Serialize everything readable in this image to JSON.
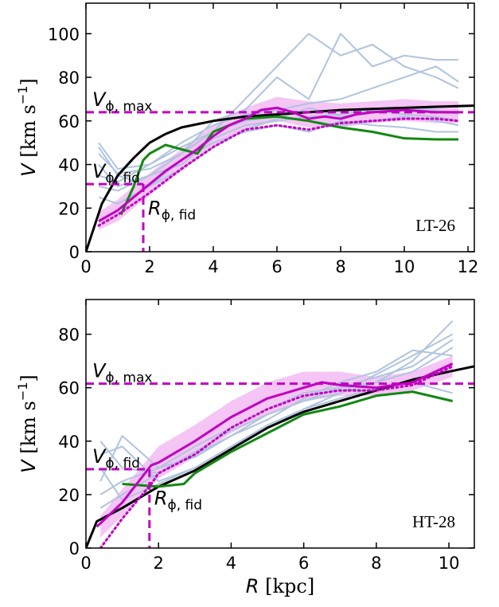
{
  "chart_data": [
    {
      "type": "line",
      "ylabel": [
        "V",
        " [km s",
        "−1",
        "]"
      ],
      "panel_label": "LT-26",
      "panel_label_color": "#0000ee",
      "xlim": [
        0,
        12.2
      ],
      "ylim": [
        0,
        114
      ],
      "xticks": [
        0,
        2,
        4,
        6,
        8,
        10,
        12
      ],
      "yticks": [
        0,
        20,
        40,
        60,
        80,
        100
      ],
      "v_max": 64,
      "v_fid": 31,
      "r_fid": 1.8,
      "ref_color": "#c000c0",
      "v_max_label": [
        "V",
        "ϕ, max"
      ],
      "v_fid_label": [
        "V",
        "ϕ, fid"
      ],
      "r_fid_label": [
        "R",
        "ϕ, fid"
      ],
      "band": {
        "color": "#f2b6f2",
        "x": [
          0.4,
          1,
          2,
          3,
          4,
          5,
          6,
          7,
          8,
          9,
          10,
          11,
          11.7
        ],
        "lower": [
          10,
          14,
          26,
          37,
          48,
          56,
          60,
          57,
          57,
          59,
          60,
          59,
          59
        ],
        "upper": [
          18,
          24,
          36,
          47,
          58,
          66,
          71,
          69,
          68,
          69,
          70,
          69,
          69
        ]
      },
      "series": [
        {
          "color": "#b0c4de",
          "width": 2,
          "x": [
            0.4,
            1,
            2,
            3,
            4,
            5,
            6,
            7,
            8,
            9,
            10,
            11,
            11.7
          ],
          "values": [
            50,
            38,
            40,
            48,
            55,
            70,
            85,
            100,
            90,
            95,
            85,
            80,
            75
          ]
        },
        {
          "color": "#b0c4de",
          "width": 2,
          "x": [
            0.4,
            1,
            2,
            3,
            4,
            5,
            6,
            7,
            8,
            9,
            10,
            11,
            11.7
          ],
          "values": [
            45,
            36,
            38,
            45,
            60,
            65,
            80,
            70,
            100,
            85,
            90,
            88,
            88
          ]
        },
        {
          "color": "#b0c4de",
          "width": 2,
          "x": [
            0.4,
            1,
            2,
            3,
            4,
            5,
            6,
            7,
            8,
            9,
            10,
            11,
            11.7
          ],
          "values": [
            40,
            30,
            35,
            45,
            55,
            60,
            62,
            60,
            58,
            60,
            62,
            60,
            58
          ]
        },
        {
          "color": "#b0c4de",
          "width": 2,
          "x": [
            0.4,
            1,
            2,
            3,
            4,
            5,
            6,
            7,
            8,
            9,
            10,
            11,
            11.7
          ],
          "values": [
            30,
            28,
            35,
            40,
            52,
            58,
            60,
            62,
            63,
            65,
            63,
            62,
            60
          ]
        },
        {
          "color": "#b0c4de",
          "width": 2,
          "x": [
            0.4,
            1,
            2,
            3,
            4,
            5,
            6,
            7,
            8,
            9,
            10,
            11,
            11.7
          ],
          "values": [
            48,
            35,
            30,
            42,
            50,
            55,
            58,
            55,
            60,
            58,
            57,
            55,
            55
          ]
        },
        {
          "color": "#b0c4de",
          "width": 2,
          "x": [
            0.4,
            1,
            2,
            3,
            4,
            5,
            6,
            7,
            8,
            9,
            10,
            11,
            11.7
          ],
          "values": [
            35,
            32,
            40,
            50,
            58,
            63,
            65,
            68,
            70,
            75,
            80,
            85,
            78
          ]
        },
        {
          "color": "#b0c4de",
          "width": 2,
          "x": [
            0.4,
            1,
            2,
            3,
            4,
            5,
            6,
            7,
            8,
            9,
            10,
            11,
            11.7
          ],
          "values": [
            25,
            22,
            30,
            38,
            48,
            56,
            61,
            66,
            62,
            64,
            66,
            65,
            63
          ]
        },
        {
          "color": "#000000",
          "width": 3,
          "x": [
            0,
            0.5,
            1,
            1.5,
            2,
            2.5,
            3,
            4,
            5,
            6,
            7,
            8,
            9,
            10,
            11,
            12.2
          ],
          "values": [
            0,
            22,
            35,
            43,
            50,
            54,
            57,
            60,
            62,
            63,
            64,
            65,
            65.5,
            66,
            66.5,
            67
          ]
        },
        {
          "color": "#118811",
          "width": 3,
          "x": [
            1.1,
            1.5,
            1.8,
            2,
            2.5,
            3,
            3.5,
            4,
            5,
            6,
            7,
            8,
            9,
            10,
            11,
            11.7
          ],
          "values": [
            17,
            30,
            42,
            45,
            49,
            47,
            45,
            55,
            61,
            62,
            60,
            57,
            55,
            52,
            51.5,
            51.5
          ]
        },
        {
          "color": "#c000c0",
          "width": 3,
          "x": [
            0.4,
            1,
            1.5,
            2,
            2.5,
            3,
            3.5,
            4,
            4.5,
            5,
            5.5,
            6,
            6.5,
            7,
            7.5,
            8,
            8.5,
            9,
            10,
            11,
            11.7
          ],
          "values": [
            14,
            19,
            25,
            31,
            37,
            42,
            47,
            53,
            58,
            61,
            65,
            66,
            64,
            61,
            62,
            61,
            63,
            64,
            65,
            64,
            64
          ]
        },
        {
          "color": "#c000c0",
          "width": 3,
          "dash": "2 4",
          "x": [
            0.4,
            1,
            2,
            3,
            4,
            5,
            6,
            7,
            8,
            9,
            10,
            11,
            11.7
          ],
          "values": [
            12,
            17,
            27,
            38,
            48,
            56,
            58,
            56,
            59,
            60,
            61,
            61,
            60
          ]
        }
      ]
    },
    {
      "type": "line",
      "ylabel": [
        "V",
        " [km s",
        "−1",
        "]"
      ],
      "xlabel": [
        "R",
        " [kpc]"
      ],
      "panel_label": "HT-28",
      "panel_label_color": "#ee0000",
      "xlim": [
        0,
        10.7
      ],
      "ylim": [
        0,
        93
      ],
      "xticks": [
        0,
        2,
        4,
        6,
        8,
        10
      ],
      "yticks": [
        0,
        20,
        40,
        60,
        80
      ],
      "v_max": 61.5,
      "v_fid": 29.5,
      "r_fid": 1.75,
      "ref_color": "#c000c0",
      "v_max_label": [
        "V",
        "ϕ, max"
      ],
      "v_fid_label": [
        "V",
        "ϕ, fid"
      ],
      "r_fid_label": [
        "R",
        "ϕ, fid"
      ],
      "band": {
        "color": "#f2b6f2",
        "x": [
          0.4,
          1,
          2,
          3,
          4,
          5,
          6,
          7,
          8,
          9,
          10.1
        ],
        "lower": [
          4,
          12,
          26,
          34,
          43,
          50,
          55,
          57,
          57,
          59,
          64
        ],
        "upper": [
          12,
          22,
          38,
          46,
          55,
          62,
          66,
          66,
          64,
          66,
          72
        ]
      },
      "series": [
        {
          "color": "#b0c4de",
          "width": 2,
          "x": [
            0.4,
            1,
            2,
            3,
            4,
            5,
            6,
            7,
            8,
            9,
            10.1
          ],
          "values": [
            40,
            30,
            28,
            35,
            42,
            50,
            55,
            58,
            65,
            72,
            80
          ]
        },
        {
          "color": "#b0c4de",
          "width": 2,
          "x": [
            0.4,
            1,
            2,
            3,
            4,
            5,
            6,
            7,
            8,
            9,
            10.1
          ],
          "values": [
            35,
            38,
            25,
            30,
            38,
            45,
            52,
            58,
            62,
            70,
            85
          ]
        },
        {
          "color": "#b0c4de",
          "width": 2,
          "x": [
            0.4,
            1,
            2,
            3,
            4,
            5,
            6,
            7,
            8,
            9,
            10.1
          ],
          "values": [
            20,
            25,
            30,
            38,
            45,
            52,
            58,
            60,
            62,
            66,
            75
          ]
        },
        {
          "color": "#b0c4de",
          "width": 2,
          "x": [
            0.4,
            1,
            2,
            3,
            4,
            5,
            6,
            7,
            8,
            9,
            10.1
          ],
          "values": [
            15,
            20,
            28,
            36,
            44,
            50,
            55,
            60,
            64,
            68,
            78
          ]
        },
        {
          "color": "#b0c4de",
          "width": 2,
          "x": [
            0.4,
            1,
            2,
            3,
            4,
            5,
            6,
            7,
            8,
            9,
            10.1
          ],
          "values": [
            30,
            18,
            24,
            30,
            38,
            46,
            52,
            56,
            60,
            62,
            58
          ]
        },
        {
          "color": "#b0c4de",
          "width": 2,
          "x": [
            0.4,
            1,
            2,
            3,
            4,
            5,
            6,
            7,
            8,
            9,
            10.1
          ],
          "values": [
            25,
            42,
            30,
            34,
            42,
            48,
            56,
            62,
            66,
            74,
            72
          ]
        },
        {
          "color": "#000000",
          "width": 3,
          "x": [
            0,
            0.3,
            1,
            2,
            3,
            4,
            5,
            6,
            7,
            8,
            9,
            10,
            10.7
          ],
          "values": [
            0,
            10,
            15,
            23,
            29,
            37,
            45,
            51,
            55,
            59,
            63,
            66,
            68
          ]
        },
        {
          "color": "#118811",
          "width": 3,
          "x": [
            1,
            2,
            2.7,
            3,
            4,
            5,
            6,
            7,
            8,
            9,
            10.1
          ],
          "values": [
            24,
            23,
            24,
            28,
            36,
            43,
            50,
            53,
            57,
            58.5,
            55
          ]
        },
        {
          "color": "#c000c0",
          "width": 3,
          "x": [
            0.3,
            1,
            1.8,
            2,
            3,
            4,
            5,
            6,
            6.5,
            7,
            8,
            9,
            10.1
          ],
          "values": [
            8,
            17,
            31,
            32,
            40,
            49,
            56,
            60,
            62,
            61,
            60,
            62,
            69
          ]
        },
        {
          "color": "#c000c0",
          "width": 3,
          "dash": "2 4",
          "x": [
            0.4,
            1,
            1.8,
            2,
            3,
            4,
            5,
            6,
            7,
            8,
            9,
            10.1
          ],
          "values": [
            0,
            11,
            24,
            28,
            35,
            45,
            52,
            57,
            59,
            59,
            61,
            68
          ]
        }
      ]
    }
  ]
}
